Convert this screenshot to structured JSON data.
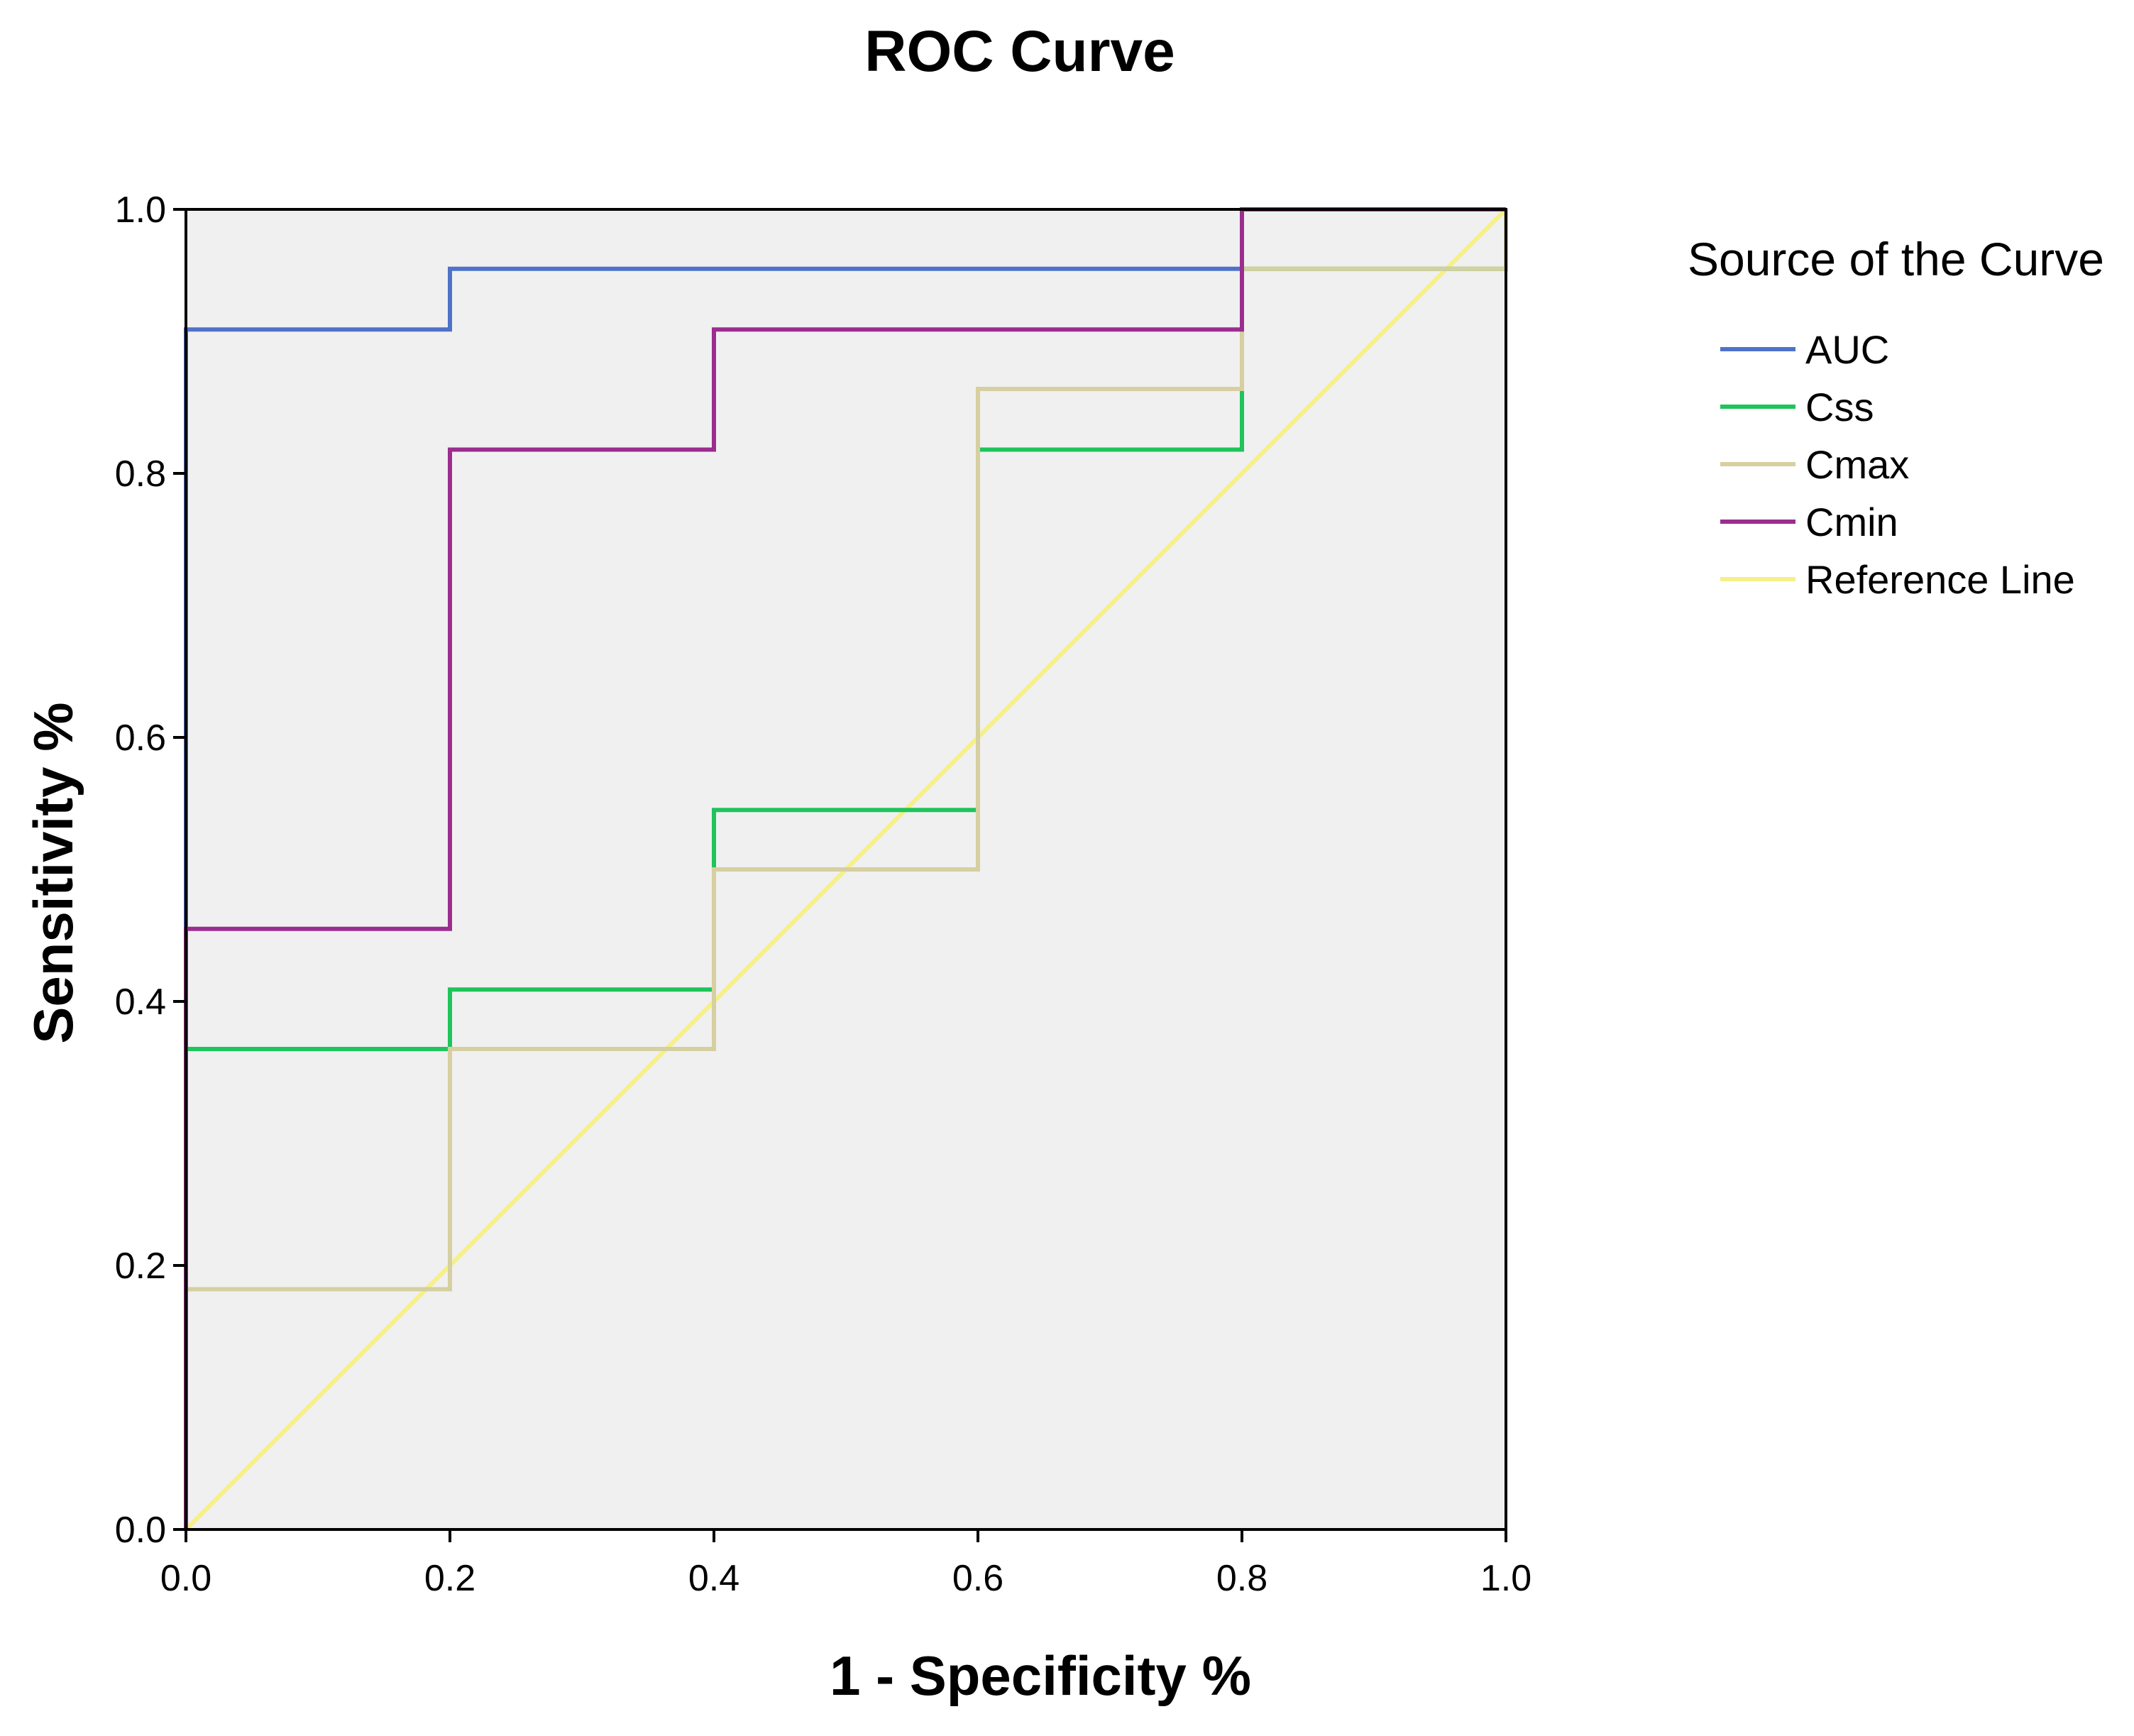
{
  "chart_data": {
    "type": "line",
    "title": "ROC Curve",
    "xlabel": "1 - Specificity %",
    "ylabel": "Sensitivity %",
    "xlim": [
      0,
      1
    ],
    "ylim": [
      0,
      1
    ],
    "xticks": [
      "0.0",
      "0.2",
      "0.4",
      "0.6",
      "0.8",
      "1.0"
    ],
    "yticks": [
      "0.0",
      "0.2",
      "0.4",
      "0.6",
      "0.8",
      "1.0"
    ],
    "grid": false,
    "plot_background": "#f0f0f0",
    "legend": {
      "title": "Source of the Curve",
      "placement": "right"
    },
    "series": [
      {
        "name": "AUC",
        "color": "#4f72c9",
        "x": [
          0,
          0,
          0.2,
          0.2,
          0.8,
          0.8,
          1.0
        ],
        "y": [
          0,
          0.909,
          0.909,
          0.955,
          0.955,
          1.0,
          1.0
        ]
      },
      {
        "name": "Css",
        "color": "#1fc45a",
        "x": [
          0,
          0,
          0.2,
          0.2,
          0.4,
          0.4,
          0.6,
          0.6,
          0.8,
          0.8,
          1.0,
          1.0
        ],
        "y": [
          0,
          0.364,
          0.364,
          0.409,
          0.409,
          0.545,
          0.545,
          0.818,
          0.818,
          0.955,
          0.955,
          1.0
        ]
      },
      {
        "name": "Cmax",
        "color": "#d6cfa0",
        "x": [
          0,
          0,
          0.2,
          0.2,
          0.4,
          0.4,
          0.6,
          0.6,
          0.8,
          0.8,
          1.0,
          1.0
        ],
        "y": [
          0,
          0.182,
          0.182,
          0.364,
          0.364,
          0.5,
          0.5,
          0.864,
          0.864,
          0.955,
          0.955,
          1.0
        ]
      },
      {
        "name": "Cmin",
        "color": "#9b2d8f",
        "x": [
          0,
          0,
          0.2,
          0.2,
          0.4,
          0.4,
          0.8,
          0.8,
          1.0
        ],
        "y": [
          0,
          0.455,
          0.455,
          0.818,
          0.818,
          0.909,
          0.909,
          1.0,
          1.0
        ]
      },
      {
        "name": "Reference Line",
        "color": "#f5f088",
        "x": [
          0,
          1.0
        ],
        "y": [
          0,
          1.0
        ]
      }
    ]
  }
}
